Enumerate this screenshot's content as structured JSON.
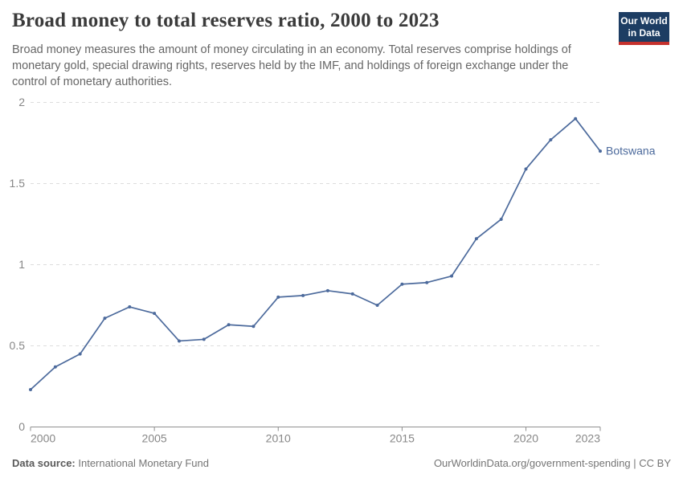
{
  "header": {
    "title": "Broad money to total reserves ratio, 2000 to 2023",
    "subtitle": "Broad money measures the amount of money circulating in an economy. Total reserves comprise holdings of monetary gold, special drawing rights, reserves held by the IMF, and holdings of foreign exchange under the control of monetary authorities.",
    "logo": {
      "line1": "Our World",
      "line2": "in Data"
    }
  },
  "chart_data": {
    "type": "line",
    "title": "Broad money to total reserves ratio, 2000 to 2023",
    "x": [
      2000,
      2001,
      2002,
      2003,
      2004,
      2005,
      2006,
      2007,
      2008,
      2009,
      2010,
      2011,
      2012,
      2013,
      2014,
      2015,
      2016,
      2017,
      2018,
      2019,
      2020,
      2021,
      2022,
      2023
    ],
    "series": [
      {
        "name": "Botswana",
        "color": "#4c6a9c",
        "values": [
          0.23,
          0.37,
          0.45,
          0.67,
          0.74,
          0.7,
          0.53,
          0.54,
          0.63,
          0.62,
          0.8,
          0.81,
          0.84,
          0.82,
          0.75,
          0.88,
          0.89,
          0.93,
          1.16,
          1.28,
          1.59,
          1.77,
          1.9,
          1.7
        ]
      }
    ],
    "xticks": [
      2000,
      2005,
      2010,
      2015,
      2020,
      2023
    ],
    "yticks": [
      0,
      0.5,
      1,
      1.5,
      2
    ],
    "xlim": [
      2000,
      2023
    ],
    "ylim": [
      0,
      2
    ],
    "xlabel": "",
    "ylabel": "",
    "grid": "horizontal-dashed",
    "legend": "entity-label-at-line-end"
  },
  "footer": {
    "source_label": "Data source:",
    "source_value": "International Monetary Fund",
    "note": "OurWorldinData.org/government-spending | CC BY"
  },
  "colors": {
    "line": "#4c6a9c",
    "title_text": "#3b3b3b",
    "subtitle_text": "#666666",
    "tick_text": "#878787",
    "gridline": "#dddddd",
    "axis": "#8f8f8f",
    "logo_bg": "#1d3d63",
    "logo_stripe": "#c5312d",
    "footer_text": "#757575",
    "footer_label": "#5a5a5a"
  }
}
